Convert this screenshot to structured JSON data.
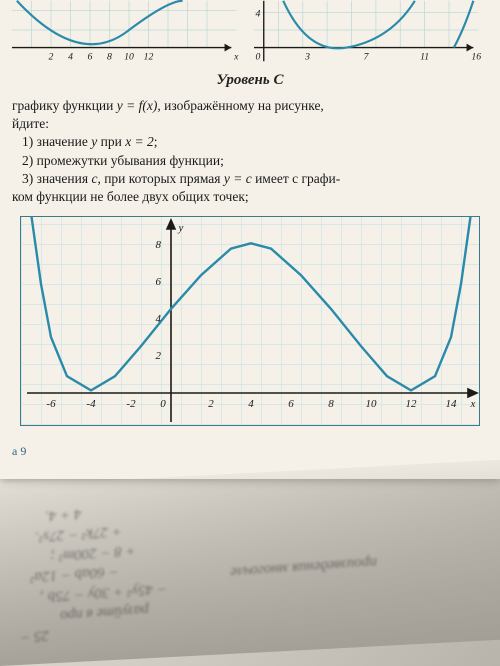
{
  "top_mini_left": {
    "x_ticks": [
      2,
      4,
      6,
      8,
      10,
      12
    ],
    "x_label": "x",
    "curve_color": "#2a8aaa",
    "axis_color": "#1a1a1a",
    "grid_color": "#bedad8"
  },
  "top_mini_right": {
    "x_ticks": [
      3,
      7,
      11,
      16
    ],
    "x_label": "x",
    "y_visible_tick": 4,
    "curve_color": "#2a8aaa",
    "axis_color": "#1a1a1a"
  },
  "level_heading": "Уровень С",
  "intro_a": "графику функции ",
  "intro_eq": "y = f(x)",
  "intro_b": ", изображённому на рисунке,",
  "intro_find": "йдите:",
  "q1_a": "1) значение ",
  "q1_y": "y",
  "q1_b": " при ",
  "q1_x": "x = 2",
  "q1_c": ";",
  "q2": "2) промежутки убывания функции;",
  "q3_a": "3) значения ",
  "q3_c": "c",
  "q3_b": ", при которых прямая ",
  "q3_eq": "y = c",
  "q3_d": " имеет с графи-",
  "q3_line2": "ком функции не более двух общих точек;",
  "page_label": "а 9",
  "main_chart": {
    "type": "line",
    "x_ticks": [
      -6,
      -4,
      -2,
      0,
      2,
      4,
      6,
      8,
      10,
      12,
      14
    ],
    "y_ticks": [
      2,
      4,
      6,
      8
    ],
    "y_label": "y",
    "x_label": "x",
    "xlim": [
      -7,
      15
    ],
    "ylim": [
      -1.5,
      9.5
    ],
    "curve_points": [
      [
        -7,
        10
      ],
      [
        -6.5,
        6
      ],
      [
        -6,
        3
      ],
      [
        -5.2,
        0.8
      ],
      [
        -4,
        0
      ],
      [
        -2.8,
        0.8
      ],
      [
        -1.5,
        2.5
      ],
      [
        0,
        4.6
      ],
      [
        1.5,
        6.5
      ],
      [
        3,
        8
      ],
      [
        4,
        8.3
      ],
      [
        5,
        8
      ],
      [
        6.5,
        6.5
      ],
      [
        8,
        4.6
      ],
      [
        9.5,
        2.5
      ],
      [
        10.8,
        0.8
      ],
      [
        12,
        0
      ],
      [
        13.2,
        0.8
      ],
      [
        14,
        3
      ],
      [
        14.5,
        6
      ],
      [
        15,
        10
      ]
    ],
    "curve_color": "#2a8aaa",
    "curve_width": 2.4,
    "axis_color": "#1a1a1a",
    "grid_color": "#bedad8",
    "tick_fontsize": 11,
    "label_fontsize": 13,
    "background_color": "#f5f1e8"
  },
  "blur_lines": [
    "25 −",
    "разуйте в про",
    "− 45y² + 30y − 75b ,",
    "− 60ab − 12a²",
    "+ 8 − 200m² ;",
    "+ 27k² − 27s².",
    "произведения многочле",
    "4 + 4."
  ]
}
